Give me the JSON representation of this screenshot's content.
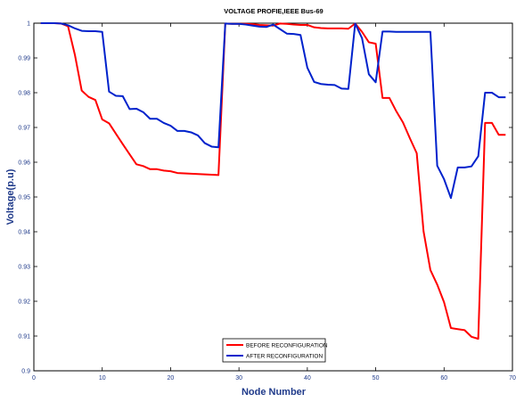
{
  "chart_data": {
    "type": "line",
    "title": "VOLTAGE PROFIE,IEEE Bus-69",
    "xlabel": "Node Number",
    "ylabel": "Voltage(p.u)",
    "xlim": [
      0,
      70
    ],
    "ylim": [
      0.9,
      1.0
    ],
    "xticks": [
      "0",
      "10",
      "20",
      "30",
      "40",
      "50",
      "60",
      "70"
    ],
    "yticks": [
      "0.9",
      "0.91",
      "0.92",
      "0.93",
      "0.94",
      "0.95",
      "0.96",
      "0.97",
      "0.98",
      "0.99",
      "1"
    ],
    "grid": false,
    "legend_position": "bottom-center",
    "series": [
      {
        "name": "BEFORE RECONFIGURATION",
        "color": "#ff0000",
        "x": [
          1,
          2,
          3,
          4,
          5,
          6,
          7,
          8,
          9,
          10,
          11,
          12,
          13,
          14,
          15,
          16,
          17,
          18,
          19,
          20,
          21,
          22,
          23,
          24,
          25,
          26,
          27,
          28,
          29,
          30,
          31,
          32,
          33,
          34,
          35,
          36,
          37,
          38,
          39,
          40,
          41,
          42,
          43,
          44,
          45,
          46,
          47,
          48,
          49,
          50,
          51,
          52,
          53,
          54,
          55,
          56,
          57,
          58,
          59,
          60,
          61,
          62,
          63,
          64,
          65,
          66,
          67,
          68,
          69
        ],
        "values": [
          1.0,
          1.0,
          1.0,
          0.9999,
          0.9991,
          0.9909,
          0.9806,
          0.9788,
          0.9779,
          0.9723,
          0.9712,
          0.9682,
          0.9652,
          0.9623,
          0.9594,
          0.9589,
          0.958,
          0.958,
          0.9576,
          0.9574,
          0.9569,
          0.9568,
          0.9567,
          0.9566,
          0.9565,
          0.9564,
          0.9563,
          0.9999,
          0.9998,
          0.9998,
          0.9998,
          0.9997,
          0.9995,
          0.9994,
          0.9993,
          0.9999,
          0.9998,
          0.9996,
          0.9995,
          0.9995,
          0.9988,
          0.9986,
          0.9985,
          0.9985,
          0.9985,
          0.9984,
          0.9999,
          0.9975,
          0.9945,
          0.9941,
          0.9785,
          0.9785,
          0.9747,
          0.9714,
          0.9669,
          0.9626,
          0.9401,
          0.929,
          0.9248,
          0.9197,
          0.9123,
          0.912,
          0.9117,
          0.9098,
          0.9092,
          0.9713,
          0.9713,
          0.9679,
          0.9679
        ]
      },
      {
        "name": "AFTER RECONFIGURATION",
        "color": "#0022cc",
        "x": [
          1,
          2,
          3,
          4,
          5,
          6,
          7,
          8,
          9,
          10,
          11,
          12,
          13,
          14,
          15,
          16,
          17,
          18,
          19,
          20,
          21,
          22,
          23,
          24,
          25,
          26,
          27,
          28,
          29,
          30,
          31,
          32,
          33,
          34,
          35,
          36,
          37,
          38,
          39,
          40,
          41,
          42,
          43,
          44,
          45,
          46,
          47,
          48,
          49,
          50,
          51,
          52,
          53,
          54,
          55,
          56,
          57,
          58,
          59,
          60,
          61,
          62,
          63,
          64,
          65,
          66,
          67,
          68,
          69
        ],
        "values": [
          1.0,
          1.0,
          1.0,
          0.9999,
          0.9994,
          0.9985,
          0.9978,
          0.9977,
          0.9977,
          0.9975,
          0.9803,
          0.9791,
          0.979,
          0.9753,
          0.9754,
          0.9744,
          0.9725,
          0.9725,
          0.9713,
          0.9705,
          0.969,
          0.969,
          0.9686,
          0.9677,
          0.9655,
          0.9645,
          0.9643,
          0.9999,
          0.9998,
          0.9998,
          0.9996,
          0.9993,
          0.999,
          0.9989,
          0.9996,
          0.9983,
          0.997,
          0.9969,
          0.9966,
          0.9872,
          0.9831,
          0.9825,
          0.9823,
          0.9822,
          0.9812,
          0.9811,
          0.9999,
          0.9957,
          0.9853,
          0.983,
          0.9976,
          0.9976,
          0.9975,
          0.9975,
          0.9975,
          0.9975,
          0.9975,
          0.9975,
          0.959,
          0.9551,
          0.9497,
          0.9585,
          0.9585,
          0.9588,
          0.9617,
          0.98,
          0.98,
          0.9787,
          0.9787
        ]
      }
    ]
  }
}
